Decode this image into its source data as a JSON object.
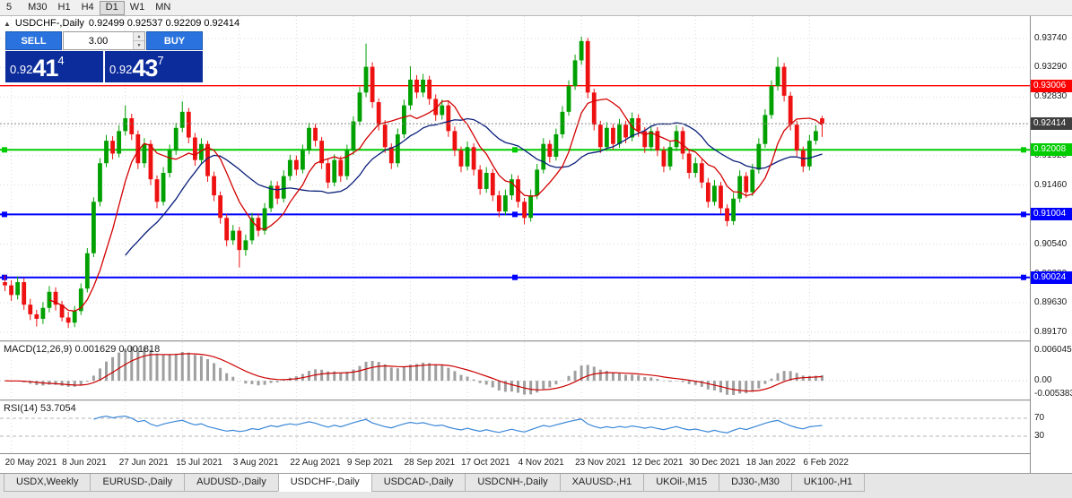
{
  "toolbar": {
    "timeframes": [
      {
        "label": "5",
        "active": false
      },
      {
        "label": "M30",
        "active": false
      },
      {
        "label": "H1",
        "active": false
      },
      {
        "label": "H4",
        "active": false
      },
      {
        "label": "D1",
        "active": true
      },
      {
        "label": "W1",
        "active": false
      },
      {
        "label": "MN",
        "active": false
      }
    ]
  },
  "chart_header": {
    "collapse_icon": "▲",
    "title": "USDCHF-,Daily",
    "ohlc": "0.92499 0.92537 0.92209 0.92414"
  },
  "trade_panel": {
    "sell_label": "SELL",
    "buy_label": "BUY",
    "volume": "3.00",
    "spin_up_icon": "▲",
    "spin_down_icon": "▼",
    "bid": {
      "prefix": "0.92",
      "big": "41",
      "sup": "4"
    },
    "ask": {
      "prefix": "0.92",
      "big": "43",
      "sup": "7"
    }
  },
  "indicators": {
    "macd": {
      "label": "MACD(12,26,9) 0.001629 0.001818",
      "axis_top": "0.006045",
      "axis_zero": "0.00",
      "axis_bottom": "-0.005383"
    },
    "rsi": {
      "label": "RSI(14) 53.7054",
      "level_labels": [
        "70",
        "30"
      ],
      "levels": [
        70,
        30
      ]
    }
  },
  "tabs": {
    "active_index": 3,
    "items": [
      {
        "label": "USDX,Weekly"
      },
      {
        "label": "EURUSD-,Daily"
      },
      {
        "label": "AUDUSD-,Daily"
      },
      {
        "label": "USDCHF-,Daily"
      },
      {
        "label": "USDCAD-,Daily"
      },
      {
        "label": "USDCNH-,Daily"
      },
      {
        "label": "XAUUSD-,H1"
      },
      {
        "label": "UKOil-,M15"
      },
      {
        "label": "DJ30-,M30"
      },
      {
        "label": "UK100-,H1"
      }
    ]
  },
  "chart_data": {
    "type": "candlestick",
    "title": "USDCHF-,Daily",
    "symbol": "USDCHF-",
    "timeframe": "Daily",
    "ohlc_display": {
      "open": 0.92499,
      "high": 0.92537,
      "low": 0.92209,
      "close": 0.92414
    },
    "price_axis_ticks": [
      "0.93740",
      "0.93290",
      "0.92830",
      "0.92370",
      "0.91920",
      "0.91460",
      "0.91000",
      "0.90540",
      "0.90080",
      "0.89630",
      "0.89170"
    ],
    "axis_range": {
      "top": 0.9374,
      "bottom": 0.8917
    },
    "x_labels": [
      "20 May 2021",
      "8 Jun 2021",
      "27 Jun 2021",
      "15 Jul 2021",
      "3 Aug 2021",
      "22 Aug 2021",
      "9 Sep 2021",
      "28 Sep 2021",
      "17 Oct 2021",
      "4 Nov 2021",
      "23 Nov 2021",
      "12 Dec 2021",
      "30 Dec 2021",
      "18 Jan 2022",
      "6 Feb 2022"
    ],
    "levels": [
      {
        "price": 0.93006,
        "label": "0.93006",
        "color": "#ff0000",
        "width": 1.4,
        "handles": false
      },
      {
        "price": 0.92008,
        "label": "0.92008",
        "color": "#00cc00",
        "width": 2,
        "handles": true
      },
      {
        "price": 0.91004,
        "label": "0.91004",
        "color": "#0000ff",
        "width": 2,
        "handles": true
      },
      {
        "price": 0.90024,
        "label": "0.90024",
        "color": "#0000ff",
        "width": 2,
        "handles": true
      }
    ],
    "current_price": {
      "value": 0.92414,
      "label": "0.92414",
      "badge_color": "#3f3f3f"
    },
    "ma_periods": {
      "fast": 8,
      "slow": 20
    },
    "colors": {
      "up": "#00a000",
      "down": "#ee1111",
      "ma_fast": "#d40000",
      "ma_slow": "#0a1f7a",
      "macd_hist": "#9f9f9f",
      "macd_signal": "#cc0000",
      "rsi": "#3a87d8",
      "grid": "#d9d9d9"
    },
    "candles": [
      [
        0.8995,
        0.9006,
        0.8981,
        0.899
      ],
      [
        0.899,
        0.8998,
        0.8966,
        0.8975
      ],
      [
        0.8975,
        0.9004,
        0.8968,
        0.8995
      ],
      [
        0.8995,
        0.9001,
        0.8952,
        0.896
      ],
      [
        0.896,
        0.8969,
        0.8936,
        0.8945
      ],
      [
        0.8945,
        0.8952,
        0.8926,
        0.8938
      ],
      [
        0.8938,
        0.8964,
        0.893,
        0.8955
      ],
      [
        0.8955,
        0.8989,
        0.8948,
        0.898
      ],
      [
        0.898,
        0.8987,
        0.8951,
        0.896
      ],
      [
        0.896,
        0.8966,
        0.8934,
        0.894
      ],
      [
        0.894,
        0.8949,
        0.8924,
        0.8932
      ],
      [
        0.8932,
        0.8958,
        0.8925,
        0.895
      ],
      [
        0.895,
        0.8993,
        0.8944,
        0.8985
      ],
      [
        0.8985,
        0.9048,
        0.8979,
        0.904
      ],
      [
        0.904,
        0.9127,
        0.9034,
        0.912
      ],
      [
        0.912,
        0.9188,
        0.9113,
        0.918
      ],
      [
        0.918,
        0.9224,
        0.9174,
        0.9215
      ],
      [
        0.9215,
        0.9222,
        0.9186,
        0.9195
      ],
      [
        0.9195,
        0.9239,
        0.9189,
        0.923
      ],
      [
        0.923,
        0.927,
        0.9223,
        0.925
      ],
      [
        0.925,
        0.9257,
        0.9216,
        0.9225
      ],
      [
        0.9225,
        0.9231,
        0.9171,
        0.918
      ],
      [
        0.918,
        0.9219,
        0.9173,
        0.921
      ],
      [
        0.921,
        0.9216,
        0.9146,
        0.9155
      ],
      [
        0.9155,
        0.9161,
        0.911,
        0.912
      ],
      [
        0.912,
        0.9174,
        0.9114,
        0.9165
      ],
      [
        0.9165,
        0.9209,
        0.9158,
        0.92
      ],
      [
        0.92,
        0.9243,
        0.9193,
        0.9235
      ],
      [
        0.9235,
        0.9276,
        0.9228,
        0.926
      ],
      [
        0.926,
        0.9266,
        0.9211,
        0.922
      ],
      [
        0.922,
        0.9227,
        0.9176,
        0.9185
      ],
      [
        0.9185,
        0.9219,
        0.9178,
        0.921
      ],
      [
        0.921,
        0.9215,
        0.9151,
        0.916
      ],
      [
        0.916,
        0.9167,
        0.9121,
        0.913
      ],
      [
        0.913,
        0.9136,
        0.9086,
        0.9095
      ],
      [
        0.9095,
        0.9101,
        0.9051,
        0.906
      ],
      [
        0.906,
        0.9084,
        0.9053,
        0.9075
      ],
      [
        0.9075,
        0.9081,
        0.9018,
        0.9045
      ],
      [
        0.9045,
        0.9069,
        0.9036,
        0.906
      ],
      [
        0.906,
        0.9103,
        0.9054,
        0.9095
      ],
      [
        0.9095,
        0.9102,
        0.9066,
        0.9075
      ],
      [
        0.9075,
        0.9118,
        0.9069,
        0.911
      ],
      [
        0.911,
        0.9153,
        0.9104,
        0.9145
      ],
      [
        0.9145,
        0.9152,
        0.9116,
        0.9125
      ],
      [
        0.9125,
        0.9169,
        0.9119,
        0.916
      ],
      [
        0.916,
        0.9193,
        0.9153,
        0.9185
      ],
      [
        0.9185,
        0.9192,
        0.9161,
        0.917
      ],
      [
        0.917,
        0.9209,
        0.9164,
        0.92
      ],
      [
        0.92,
        0.9243,
        0.9194,
        0.9235
      ],
      [
        0.9235,
        0.9241,
        0.9206,
        0.9215
      ],
      [
        0.9215,
        0.9221,
        0.9171,
        0.918
      ],
      [
        0.918,
        0.9187,
        0.9141,
        0.915
      ],
      [
        0.915,
        0.9194,
        0.9144,
        0.9185
      ],
      [
        0.9185,
        0.9191,
        0.9151,
        0.916
      ],
      [
        0.916,
        0.9209,
        0.9154,
        0.92
      ],
      [
        0.92,
        0.9253,
        0.9193,
        0.9245
      ],
      [
        0.9245,
        0.9299,
        0.9239,
        0.929
      ],
      [
        0.929,
        0.9366,
        0.9283,
        0.933
      ],
      [
        0.933,
        0.9337,
        0.9266,
        0.9275
      ],
      [
        0.9275,
        0.9281,
        0.9231,
        0.924
      ],
      [
        0.924,
        0.9247,
        0.9196,
        0.9205
      ],
      [
        0.9205,
        0.9211,
        0.9171,
        0.918
      ],
      [
        0.918,
        0.9234,
        0.9174,
        0.9225
      ],
      [
        0.9225,
        0.9279,
        0.9219,
        0.927
      ],
      [
        0.927,
        0.9331,
        0.9263,
        0.931
      ],
      [
        0.931,
        0.9317,
        0.9281,
        0.929
      ],
      [
        0.929,
        0.9319,
        0.9283,
        0.931
      ],
      [
        0.931,
        0.9316,
        0.9271,
        0.928
      ],
      [
        0.928,
        0.9287,
        0.9246,
        0.9255
      ],
      [
        0.9255,
        0.9279,
        0.9248,
        0.927
      ],
      [
        0.927,
        0.9276,
        0.9221,
        0.923
      ],
      [
        0.923,
        0.9237,
        0.9191,
        0.92
      ],
      [
        0.92,
        0.9206,
        0.9166,
        0.9175
      ],
      [
        0.9175,
        0.9214,
        0.9169,
        0.9205
      ],
      [
        0.9205,
        0.9211,
        0.9161,
        0.917
      ],
      [
        0.917,
        0.9177,
        0.9131,
        0.914
      ],
      [
        0.914,
        0.9174,
        0.9134,
        0.9165
      ],
      [
        0.9165,
        0.9171,
        0.9121,
        0.913
      ],
      [
        0.913,
        0.9137,
        0.9096,
        0.9105
      ],
      [
        0.9105,
        0.9139,
        0.9099,
        0.913
      ],
      [
        0.913,
        0.9163,
        0.9123,
        0.9155
      ],
      [
        0.9155,
        0.9161,
        0.9111,
        0.912
      ],
      [
        0.912,
        0.9126,
        0.9085,
        0.9095
      ],
      [
        0.9095,
        0.9139,
        0.9089,
        0.913
      ],
      [
        0.913,
        0.9179,
        0.9124,
        0.917
      ],
      [
        0.917,
        0.9219,
        0.9164,
        0.921
      ],
      [
        0.921,
        0.9216,
        0.9181,
        0.919
      ],
      [
        0.919,
        0.9234,
        0.9184,
        0.9225
      ],
      [
        0.9225,
        0.9269,
        0.9219,
        0.926
      ],
      [
        0.926,
        0.9309,
        0.9254,
        0.93
      ],
      [
        0.93,
        0.9349,
        0.9294,
        0.934
      ],
      [
        0.934,
        0.9377,
        0.9333,
        0.937
      ],
      [
        0.937,
        0.9375,
        0.9281,
        0.929
      ],
      [
        0.929,
        0.9296,
        0.9231,
        0.924
      ],
      [
        0.924,
        0.9246,
        0.9196,
        0.9205
      ],
      [
        0.9205,
        0.9244,
        0.9199,
        0.9235
      ],
      [
        0.9235,
        0.9241,
        0.9201,
        0.921
      ],
      [
        0.921,
        0.9249,
        0.9204,
        0.924
      ],
      [
        0.924,
        0.9246,
        0.9211,
        0.922
      ],
      [
        0.922,
        0.9259,
        0.9214,
        0.925
      ],
      [
        0.925,
        0.9256,
        0.9221,
        0.923
      ],
      [
        0.923,
        0.9236,
        0.9196,
        0.9205
      ],
      [
        0.9205,
        0.9239,
        0.9199,
        0.923
      ],
      [
        0.923,
        0.9236,
        0.9191,
        0.92
      ],
      [
        0.92,
        0.9206,
        0.9166,
        0.9175
      ],
      [
        0.9175,
        0.9214,
        0.9169,
        0.9205
      ],
      [
        0.9205,
        0.9239,
        0.9199,
        0.923
      ],
      [
        0.923,
        0.9236,
        0.9186,
        0.9195
      ],
      [
        0.9195,
        0.9201,
        0.9156,
        0.9165
      ],
      [
        0.9165,
        0.9189,
        0.9158,
        0.918
      ],
      [
        0.918,
        0.9186,
        0.9141,
        0.915
      ],
      [
        0.915,
        0.9157,
        0.9111,
        0.912
      ],
      [
        0.912,
        0.9154,
        0.9114,
        0.9145
      ],
      [
        0.9145,
        0.9151,
        0.9101,
        0.911
      ],
      [
        0.911,
        0.9116,
        0.9082,
        0.909
      ],
      [
        0.909,
        0.9134,
        0.9084,
        0.9125
      ],
      [
        0.9125,
        0.9169,
        0.9119,
        0.916
      ],
      [
        0.916,
        0.9166,
        0.9126,
        0.9135
      ],
      [
        0.9135,
        0.9179,
        0.9129,
        0.917
      ],
      [
        0.917,
        0.9219,
        0.9164,
        0.921
      ],
      [
        0.921,
        0.9264,
        0.9204,
        0.9255
      ],
      [
        0.9255,
        0.9309,
        0.9249,
        0.93
      ],
      [
        0.93,
        0.9345,
        0.9293,
        0.933
      ],
      [
        0.933,
        0.9336,
        0.9276,
        0.9285
      ],
      [
        0.9285,
        0.9291,
        0.9231,
        0.924
      ],
      [
        0.924,
        0.9246,
        0.9191,
        0.92
      ],
      [
        0.92,
        0.9206,
        0.9166,
        0.9175
      ],
      [
        0.9175,
        0.9224,
        0.9169,
        0.9215
      ],
      [
        0.9215,
        0.9239,
        0.9209,
        0.923
      ],
      [
        0.92499,
        0.92537,
        0.92209,
        0.92414
      ]
    ]
  }
}
